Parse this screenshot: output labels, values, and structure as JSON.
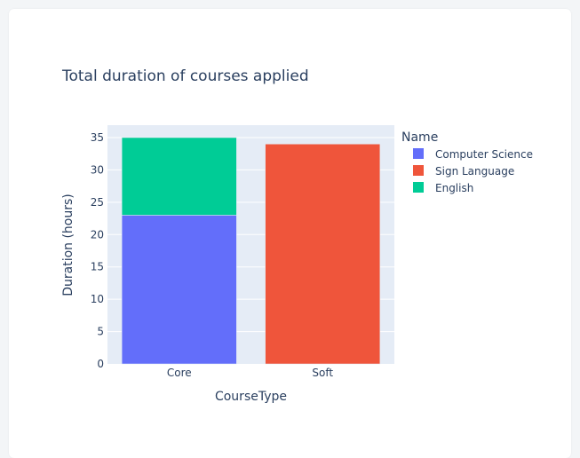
{
  "chart_data": {
    "type": "bar",
    "barmode": "stack",
    "title": "Total duration of courses applied",
    "xlabel": "CourseType",
    "ylabel": "Duration (hours)",
    "categories": [
      "Core",
      "Soft"
    ],
    "ylim": [
      0,
      35
    ],
    "yticks": [
      0,
      5,
      10,
      15,
      20,
      25,
      30,
      35
    ],
    "grid": true,
    "legend": {
      "title": "Name",
      "placement": "right"
    },
    "series": [
      {
        "name": "Computer Science",
        "color": "#636efa",
        "values": [
          23,
          0
        ]
      },
      {
        "name": "Sign Language",
        "color": "#ef553b",
        "values": [
          0,
          34
        ]
      },
      {
        "name": "English",
        "color": "#00cc96",
        "values": [
          12,
          0
        ]
      }
    ]
  },
  "colors": {
    "plot_bg": "#e5ecf6",
    "grid": "#ffffff",
    "text": "#2a3f5f"
  }
}
